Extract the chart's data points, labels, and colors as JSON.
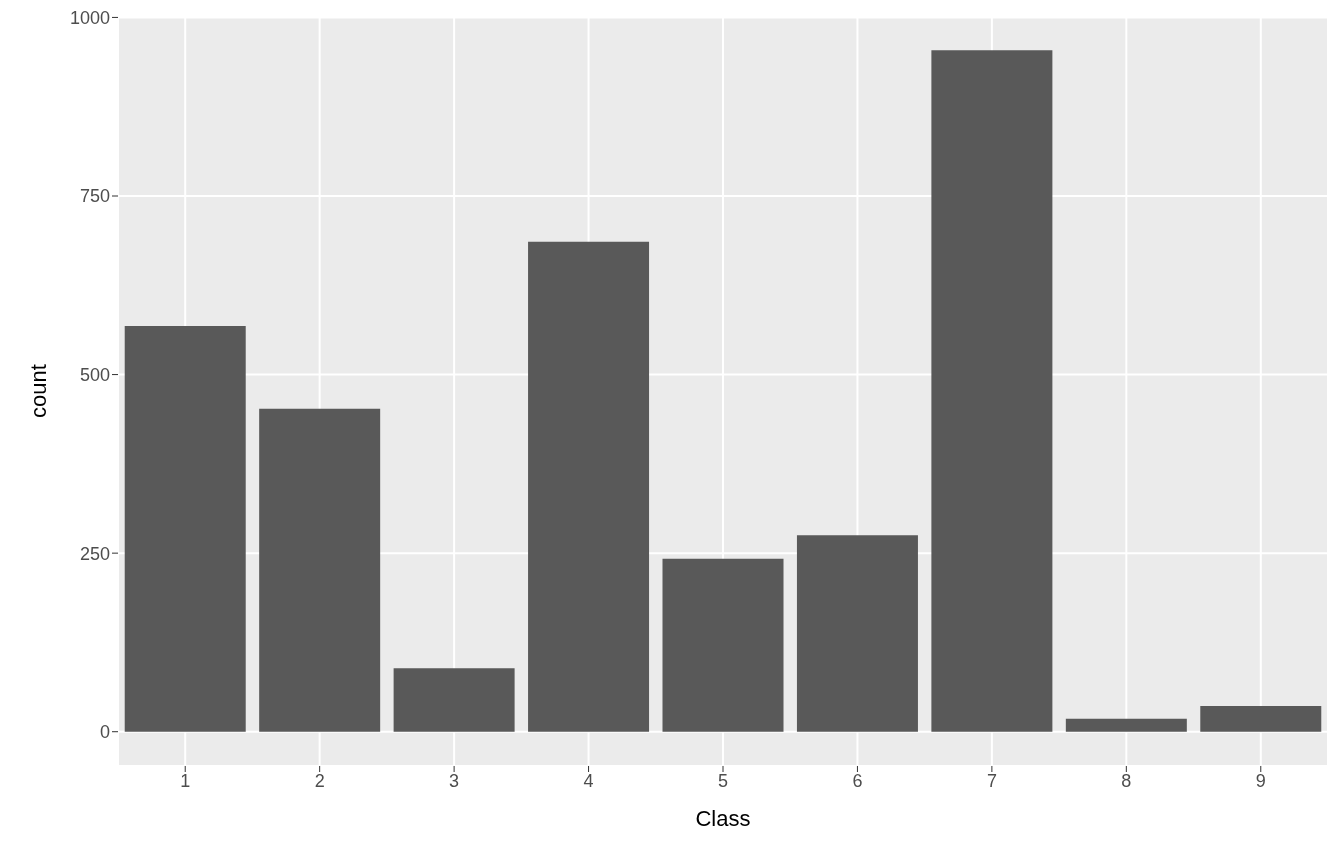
{
  "chart_data": {
    "type": "bar",
    "xlabel": "Class",
    "ylabel": "count",
    "categories": [
      "1",
      "2",
      "3",
      "4",
      "5",
      "6",
      "7",
      "8",
      "9"
    ],
    "values": [
      568,
      452,
      89,
      686,
      242,
      275,
      954,
      18,
      36
    ],
    "color": "#595959",
    "ylim": [
      -48,
      1002
    ],
    "yticks": [
      0,
      250,
      500,
      750,
      1000
    ],
    "grid": true
  }
}
